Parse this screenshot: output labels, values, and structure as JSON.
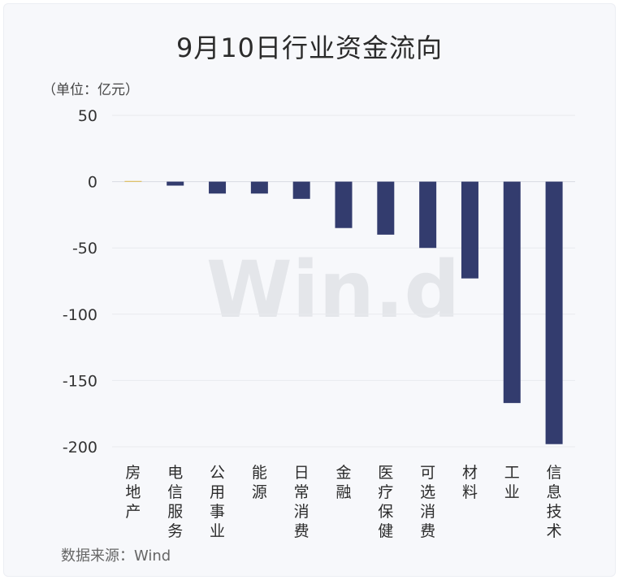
{
  "title": "9月10日行业资金流向",
  "unit_label": "（单位：亿元）",
  "source_label": "数据来源：Wind",
  "watermark": "Win.d",
  "colors": {
    "positive": "#e0b94a",
    "negative": "#333c6e"
  },
  "chart_data": {
    "type": "bar",
    "title": "9月10日行业资金流向",
    "categories": [
      "房地产",
      "电信服务",
      "公用事业",
      "能源",
      "日常消费",
      "金融",
      "医疗保健",
      "可选消费",
      "材料",
      "工业",
      "信息技术"
    ],
    "values": [
      0.5,
      -3,
      -9,
      -9,
      -13,
      -35,
      -40,
      -50,
      -73,
      -167,
      -198
    ],
    "ylim": [
      -200,
      50
    ],
    "yticks": [
      50,
      0,
      -50,
      -100,
      -150,
      -200
    ],
    "grid": true,
    "legend": "none"
  }
}
